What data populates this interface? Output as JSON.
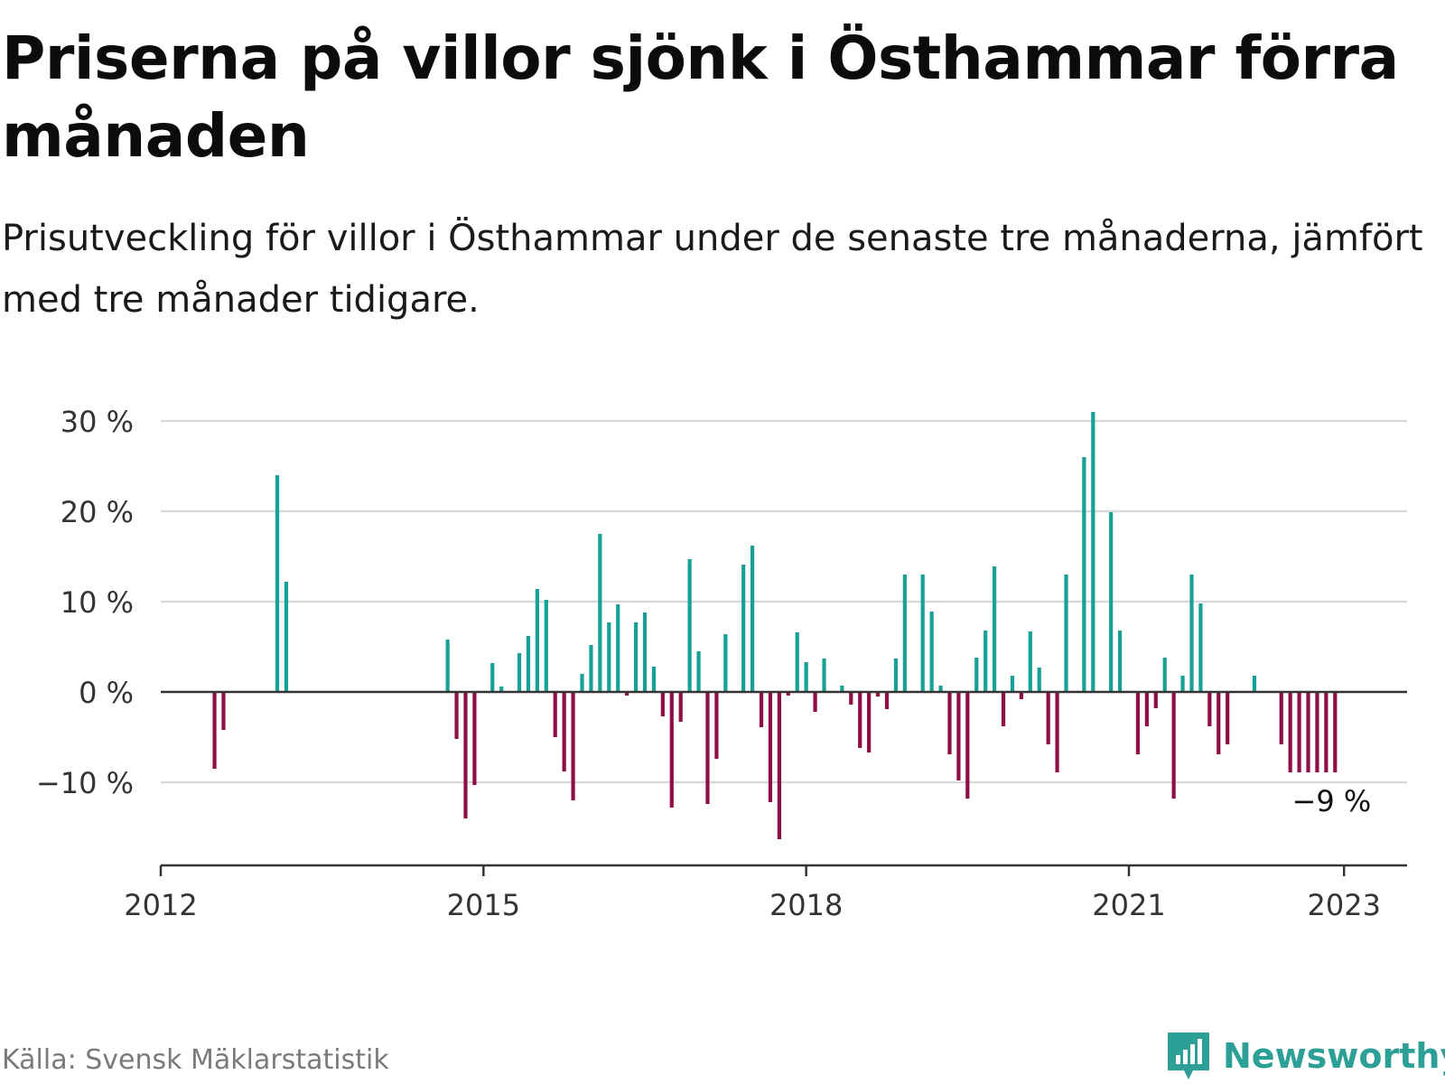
{
  "header": {
    "title": "Priserna på villor sjönk i Östhammar förra månaden",
    "subtitle": "Prisutveckling för villor i Östhammar under de senaste tre månaderna, jämfört med tre månader tidigare."
  },
  "footer": {
    "source": "Källa: Svensk Mäklarstatistik",
    "brand": "Newsworthy"
  },
  "colors": {
    "positive": "#17a096",
    "negative": "#8f0e45",
    "grid": "#d9d9d9",
    "axis": "#333333",
    "brand": "#2c9f97"
  },
  "chart_data": {
    "type": "bar",
    "title": "",
    "xlabel": "",
    "ylabel": "",
    "ylim": [
      -18,
      33
    ],
    "xlim": [
      "2012-01",
      "2023-06"
    ],
    "grid": "horizontal",
    "y_ticks": [
      {
        "value": 30,
        "label": "30 %"
      },
      {
        "value": 20,
        "label": "20 %"
      },
      {
        "value": 10,
        "label": "10 %"
      },
      {
        "value": 0,
        "label": "0 %"
      },
      {
        "value": -10,
        "label": "−10 %"
      }
    ],
    "x_ticks": [
      {
        "date": "2012-01",
        "label": "2012"
      },
      {
        "date": "2015-01",
        "label": "2015"
      },
      {
        "date": "2018-01",
        "label": "2018"
      },
      {
        "date": "2021-01",
        "label": "2021"
      },
      {
        "date": "2023-01",
        "label": "2023"
      }
    ],
    "annotation": {
      "date": "2022-12",
      "value": -9,
      "label": "−9 %"
    },
    "x": [
      "2012-07",
      "2012-08",
      "2013-02",
      "2013-03",
      "2014-09",
      "2014-10",
      "2014-11",
      "2014-12",
      "2015-02",
      "2015-03",
      "2015-05",
      "2015-06",
      "2015-07",
      "2015-08",
      "2015-09",
      "2015-10",
      "2015-11",
      "2015-12",
      "2016-01",
      "2016-02",
      "2016-03",
      "2016-04",
      "2016-05",
      "2016-06",
      "2016-07",
      "2016-08",
      "2016-09",
      "2016-10",
      "2016-11",
      "2016-12",
      "2017-01",
      "2017-02",
      "2017-03",
      "2017-04",
      "2017-06",
      "2017-07",
      "2017-08",
      "2017-09",
      "2017-10",
      "2017-11",
      "2017-12",
      "2018-01",
      "2018-02",
      "2018-03",
      "2018-05",
      "2018-06",
      "2018-07",
      "2018-08",
      "2018-09",
      "2018-10",
      "2018-11",
      "2018-12",
      "2019-02",
      "2019-03",
      "2019-04",
      "2019-05",
      "2019-06",
      "2019-07",
      "2019-08",
      "2019-09",
      "2019-10",
      "2019-11",
      "2019-12",
      "2020-01",
      "2020-02",
      "2020-03",
      "2020-04",
      "2020-05",
      "2020-06",
      "2020-08",
      "2020-09",
      "2020-11",
      "2020-12",
      "2021-02",
      "2021-03",
      "2021-04",
      "2021-05",
      "2021-06",
      "2021-07",
      "2021-08",
      "2021-09",
      "2021-10",
      "2021-11",
      "2021-12",
      "2022-03",
      "2022-06",
      "2022-07",
      "2022-08",
      "2022-09",
      "2022-10",
      "2022-11",
      "2022-12"
    ],
    "values": [
      -8.5,
      -4.2,
      24,
      12.2,
      5.8,
      -5.2,
      -14,
      -10.3,
      3.2,
      0.6,
      4.3,
      6.2,
      11.4,
      10.2,
      -5,
      -8.8,
      -12,
      2,
      5.2,
      17.5,
      7.7,
      9.7,
      -0.4,
      7.7,
      8.8,
      2.8,
      -2.7,
      -12.8,
      -3.3,
      14.7,
      4.5,
      -12.4,
      -7.4,
      6.4,
      14.1,
      16.2,
      -3.9,
      -12.2,
      -16.3,
      -0.4,
      6.6,
      3.3,
      -2.2,
      3.7,
      0.7,
      -1.4,
      -6.2,
      -6.7,
      -0.5,
      -1.9,
      3.7,
      13,
      13,
      8.9,
      0.7,
      -6.9,
      -9.8,
      -11.8,
      3.8,
      6.8,
      13.9,
      -3.8,
      1.8,
      -0.8,
      6.7,
      2.7,
      -5.8,
      -8.9,
      13,
      26,
      31,
      19.9,
      6.8,
      -6.9,
      -3.8,
      -1.8,
      3.8,
      -11.8,
      1.8,
      13,
      9.8,
      -3.8,
      -6.9,
      -5.8,
      1.8,
      -5.8,
      -8.9,
      -8.9,
      -8.9,
      -8.9,
      -8.9,
      -8.9
    ]
  }
}
